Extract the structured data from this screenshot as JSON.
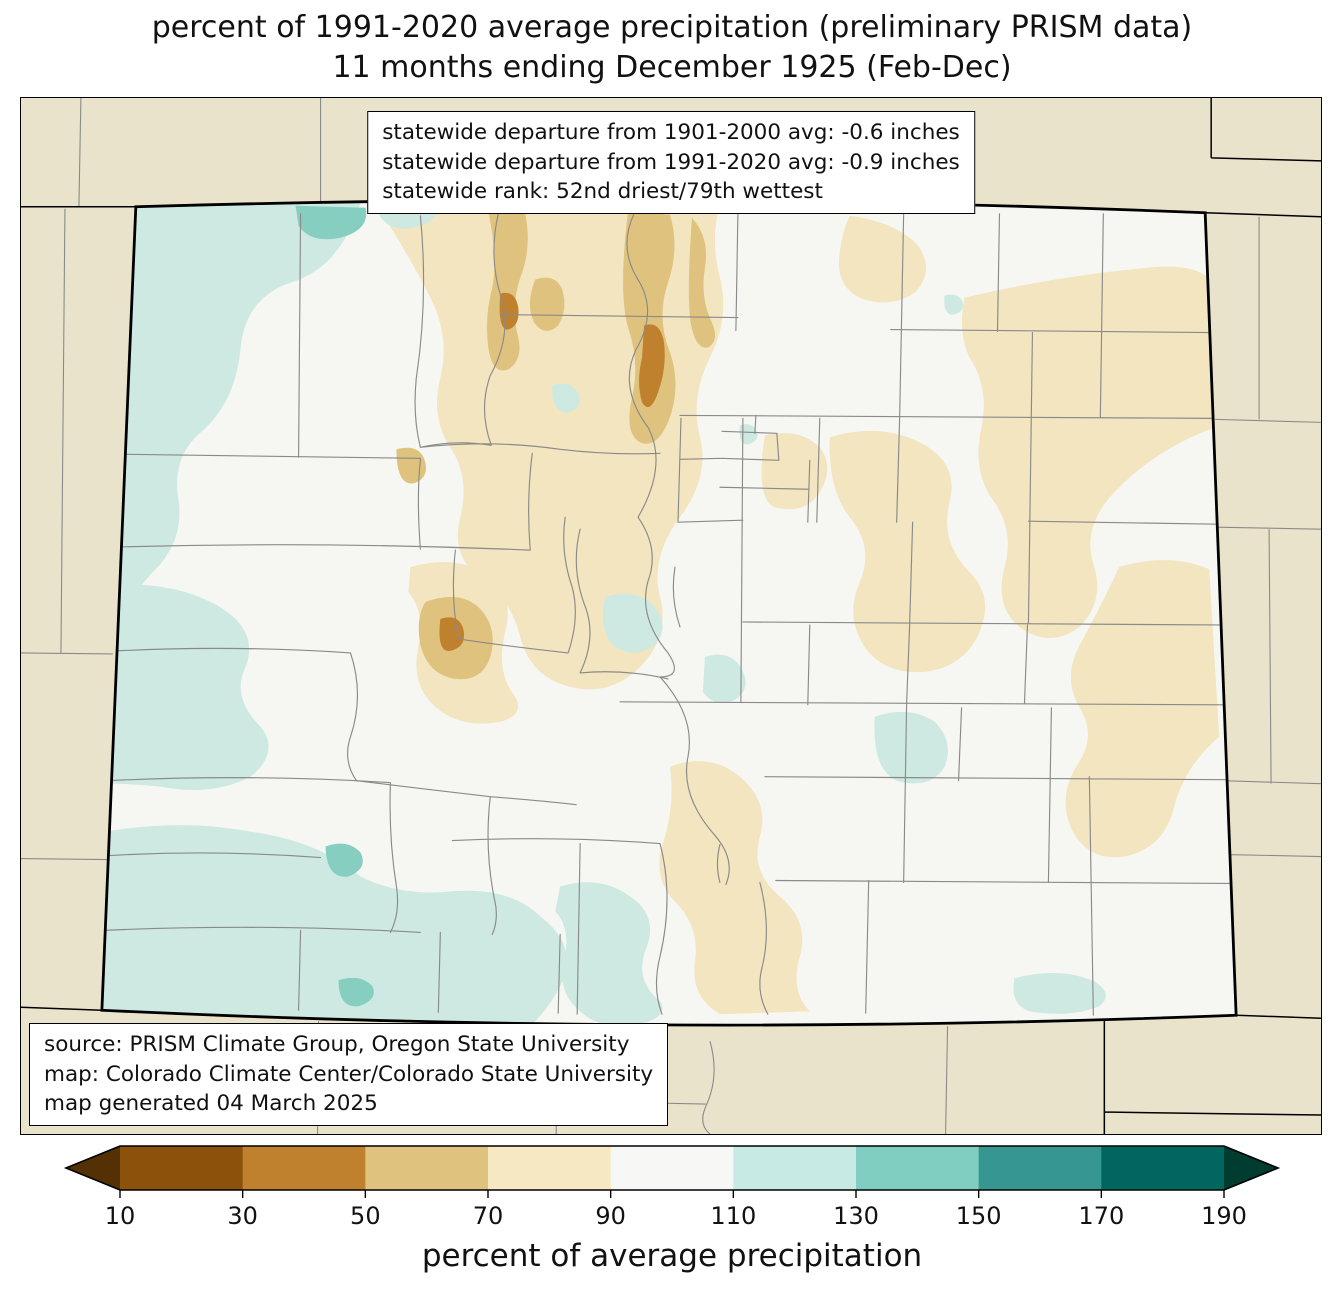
{
  "title": {
    "line1": "percent of 1991-2020 average precipitation (preliminary PRISM data)",
    "line2": "11 months ending December 1925 (Feb-Dec)"
  },
  "stats_box": {
    "line1": "statewide departure from 1901-2000 avg: -0.6 inches",
    "line2": "statewide departure from 1991-2020 avg: -0.9 inches",
    "line3": "statewide rank: 52nd driest/79th wettest"
  },
  "source_box": {
    "line1": "source: PRISM Climate Group, Oregon State University",
    "line2": "map: Colorado Climate Center/Colorado State University",
    "line3": "map generated 04 March 2025"
  },
  "colorbar": {
    "label": "percent of average precipitation",
    "ticks": [
      "10",
      "30",
      "50",
      "70",
      "90",
      "110",
      "130",
      "150",
      "170",
      "190"
    ],
    "segment_colors": [
      "#8c510a",
      "#bf812d",
      "#dfc27d",
      "#f6e8c3",
      "#f7f7f5",
      "#c7eae5",
      "#80cdc1",
      "#35978f",
      "#01665e"
    ],
    "under_color": "#543005",
    "over_color": "#003c30"
  },
  "map": {
    "region": "Colorado",
    "palette": {
      "beige": "#eae3cb",
      "state_fill": "#f6f6f2",
      "cream": "#f2e5bf",
      "tan": "#dfc27d",
      "brown": "#bf812d",
      "teal_light": "#cde9e2",
      "teal_med": "#85cec0",
      "county_line": "#8a8a8a",
      "border": "#000000"
    }
  }
}
